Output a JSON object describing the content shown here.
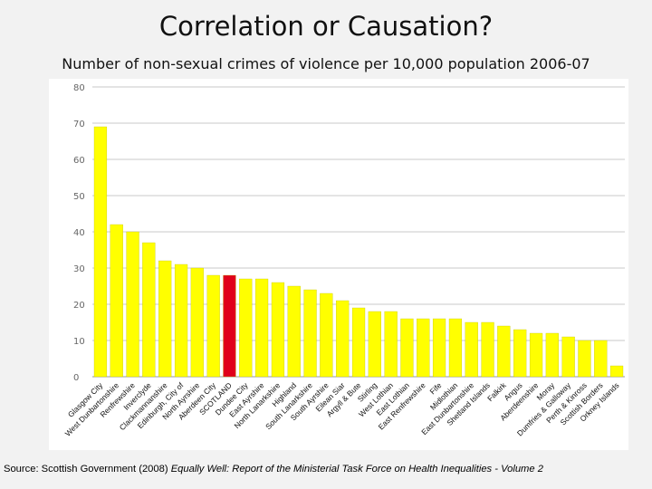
{
  "slide": {
    "title": "Correlation or Causation?",
    "subtitle": "Number of non-sexual crimes of violence per 10,000 population 2006-07"
  },
  "source": {
    "prefix": "Source: Scottish Government (2008) ",
    "italic": "Equally Well: Report of the Ministerial Task Force on Health Inequalities - Volume 2"
  },
  "colors": {
    "bar": "#ffff00",
    "highlight": "#e0001b",
    "grid": "#c8c8c8"
  },
  "chart_data": {
    "type": "bar",
    "title": "",
    "xlabel": "",
    "ylabel": "",
    "ylim": [
      0,
      80
    ],
    "yticks": [
      0,
      10,
      20,
      30,
      40,
      50,
      60,
      70,
      80
    ],
    "grid": true,
    "highlight_category": "SCOTLAND",
    "categories": [
      "Glasgow City",
      "West Dunbartonshire",
      "Renfrewshire",
      "Inverclyde",
      "Clackmannanshire",
      "Edinburgh, City of",
      "North Ayrshire",
      "Aberdeen City",
      "SCOTLAND",
      "Dundee City",
      "East Ayrshire",
      "North Lanarkshire",
      "Highland",
      "South Lanarkshire",
      "South Ayrshire",
      "Eilean Siar",
      "Argyll & Bute",
      "Stirling",
      "West Lothian",
      "East Lothian",
      "East Renfrewshire",
      "Fife",
      "Midlothian",
      "East Dunbartonshire",
      "Shetland Islands",
      "Falkirk",
      "Angus",
      "Aberdeenshire",
      "Moray",
      "Dumfries & Galloway",
      "Perth & Kinross",
      "Scottish Borders",
      "Orkney Islands"
    ],
    "values": [
      69,
      42,
      40,
      37,
      32,
      31,
      30,
      28,
      28,
      27,
      27,
      26,
      25,
      24,
      23,
      21,
      19,
      18,
      18,
      16,
      16,
      16,
      16,
      15,
      15,
      14,
      13,
      12,
      12,
      11,
      10,
      10,
      3
    ]
  }
}
